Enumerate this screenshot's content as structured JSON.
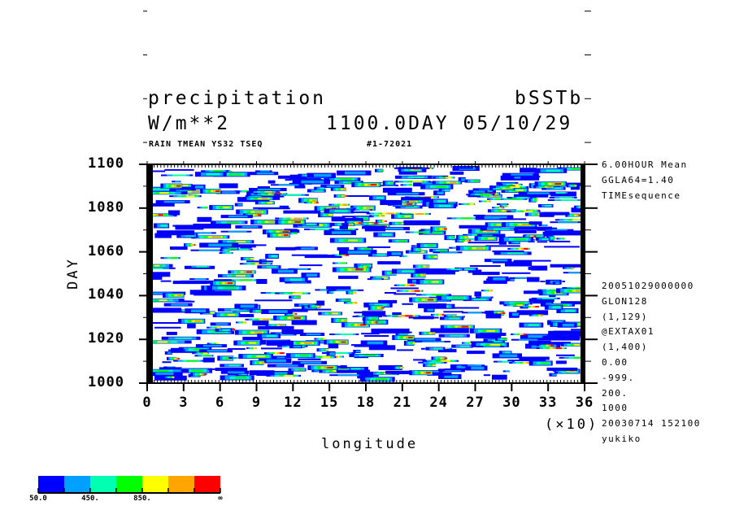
{
  "header": {
    "title_left": "precipitation",
    "title_right": "bSSTb",
    "units": "W/m**2",
    "time_info": "1100.0DAY 05/10/29",
    "subtitle_left": "RAIN TMEAN YS32 TSEQ",
    "subtitle_right": "#1-72021"
  },
  "side_info_top": [
    "6.00HOUR Mean",
    "GGLA64=1.40",
    "TIMEsequence"
  ],
  "side_info_bottom": [
    "20051029000000",
    "GLON128",
    "(1,129)",
    "@EXTAX01",
    "(1,400)",
    "0.00",
    "-999.",
    "200.",
    "1000",
    "20030714 152100",
    "yukiko"
  ],
  "chart_data": {
    "type": "heatmap",
    "xlabel": "longitude",
    "ylabel": "DAY",
    "x_multiplier_label": "(×10)",
    "xlim": [
      0,
      36
    ],
    "ylim": [
      1000,
      1100
    ],
    "x_ticks": [
      "0",
      "3",
      "6",
      "9",
      "12",
      "15",
      "18",
      "21",
      "24",
      "27",
      "30",
      "33",
      "36"
    ],
    "y_ticks": [
      "1000",
      "1020",
      "1040",
      "1060",
      "1080",
      "1100"
    ],
    "colorbar": {
      "levels_labels": [
        "50.0",
        "450.",
        "850.",
        "∞"
      ],
      "colors": [
        "#0000ff",
        "#00a0ff",
        "#00ffb0",
        "#00ff00",
        "#ffff00",
        "#ffa500",
        "#ff0000"
      ]
    }
  }
}
